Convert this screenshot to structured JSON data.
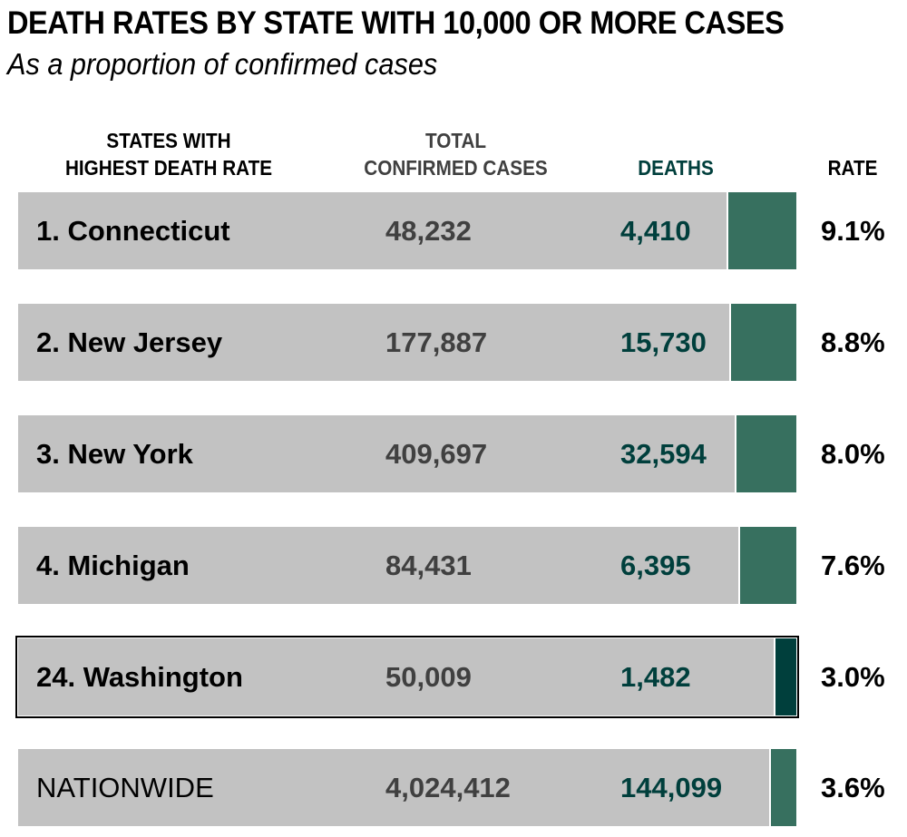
{
  "header": {
    "title": "DEATH RATES BY STATE WITH 10,000 OR MORE CASES",
    "subtitle": "As a proportion of confirmed cases"
  },
  "columns": {
    "state_line1": "STATES WITH",
    "state_line2": "HIGHEST DEATH RATE",
    "cases_line1": "TOTAL",
    "cases_line2": "CONFIRMED CASES",
    "deaths": "DEATHS",
    "rate": "RATE"
  },
  "colors": {
    "bar_background": "#c2c2c2",
    "rate_fill": "#37705f",
    "highlight_fill": "#003f3c",
    "deaths_text": "#003f3c",
    "cases_text": "#404040"
  },
  "chart_data": {
    "type": "table",
    "title": "DEATH RATES BY STATE WITH 10,000 OR MORE CASES",
    "subtitle": "As a proportion of confirmed cases",
    "columns": [
      "STATES WITH HIGHEST DEATH RATE",
      "TOTAL CONFIRMED CASES",
      "DEATHS",
      "RATE"
    ],
    "rows": [
      {
        "label": "1. Connecticut",
        "cases": "48,232",
        "deaths": "4,410",
        "rate_label": "9.1%",
        "rate": 9.1,
        "highlight": false,
        "national": false
      },
      {
        "label": "2. New Jersey",
        "cases": "177,887",
        "deaths": "15,730",
        "rate_label": "8.8%",
        "rate": 8.8,
        "highlight": false,
        "national": false
      },
      {
        "label": "3. New York",
        "cases": "409,697",
        "deaths": "32,594",
        "rate_label": "8.0%",
        "rate": 8.0,
        "highlight": false,
        "national": false
      },
      {
        "label": "4. Michigan",
        "cases": "84,431",
        "deaths": "6,395",
        "rate_label": "7.6%",
        "rate": 7.6,
        "highlight": false,
        "national": false
      },
      {
        "label": "24. Washington",
        "cases": "50,009",
        "deaths": "1,482",
        "rate_label": "3.0%",
        "rate": 3.0,
        "highlight": true,
        "national": false
      },
      {
        "label": "NATIONWIDE",
        "cases": "4,024,412",
        "deaths": "144,099",
        "rate_label": "3.6%",
        "rate": 3.6,
        "highlight": false,
        "national": true
      }
    ]
  }
}
